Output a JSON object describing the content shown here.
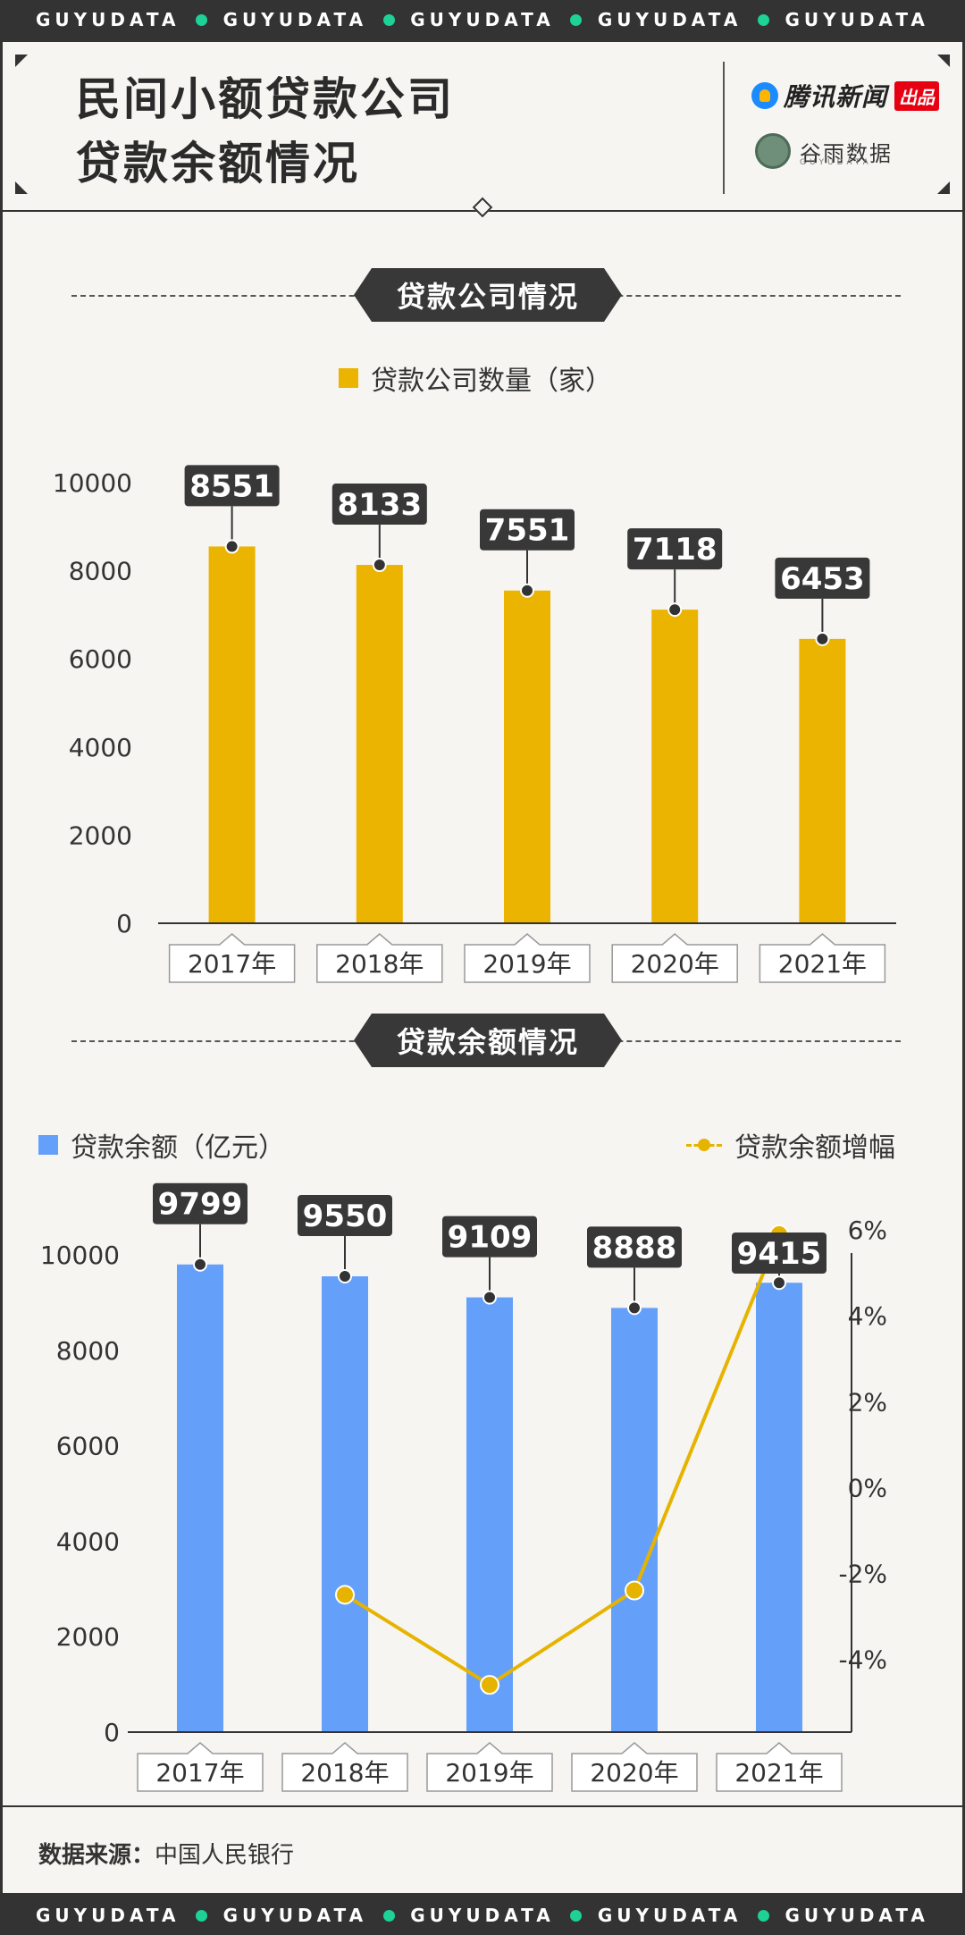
{
  "band_text": "GUYUDATA",
  "header": {
    "title_line1": "民间小额贷款公司",
    "title_line2": "贷款余额情况",
    "logo_tencent": "腾讯新闻",
    "logo_tencent_badge": "出品",
    "logo_guyu": "谷雨数据",
    "logo_guyu_sub": "GUYUDATA"
  },
  "sections": {
    "companies": "贷款公司情况",
    "balance": "贷款余额情况"
  },
  "footer": {
    "source_label": "数据来源：",
    "source_value": "中国人民银行"
  },
  "colors": {
    "bar_yellow": "#ebb400",
    "bar_blue": "#64a0fa",
    "line_yellow": "#e6b400",
    "label_bg": "#383838"
  },
  "chart_data": [
    {
      "type": "bar",
      "categories": [
        "2017年",
        "2018年",
        "2019年",
        "2020年",
        "2021年"
      ],
      "series": [
        {
          "name": "贷款公司数量（家）",
          "values": [
            8551,
            8133,
            7551,
            7118,
            6453
          ]
        }
      ],
      "y_ticks": [
        "10000",
        "8000",
        "6000",
        "4000",
        "2000",
        "0"
      ],
      "ylim": [
        0,
        10000
      ],
      "legend": "top-center",
      "grid": false
    },
    {
      "type": "bar",
      "categories": [
        "2017年",
        "2018年",
        "2019年",
        "2020年",
        "2021年"
      ],
      "series": [
        {
          "name": "贷款余额（亿元）",
          "type": "bar",
          "axis": "left",
          "values": [
            9799,
            9550,
            9109,
            8888,
            9415
          ]
        },
        {
          "name": "贷款余额增幅",
          "type": "line",
          "axis": "right",
          "unit": "%",
          "values": [
            null,
            -2.5,
            -4.6,
            -2.4,
            5.9
          ]
        }
      ],
      "y_ticks": [
        "10000",
        "8000",
        "6000",
        "4000",
        "2000",
        "0"
      ],
      "ylim": [
        0,
        10000
      ],
      "y2_ticks": [
        "6%",
        "4%",
        "2%",
        "0%",
        "-2%",
        "-4%"
      ],
      "y2lim": [
        -5.7,
        6.4
      ],
      "legend": "top",
      "grid": false
    }
  ]
}
